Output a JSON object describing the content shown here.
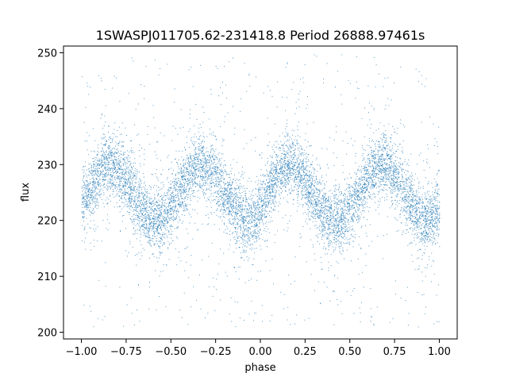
{
  "chart_data": {
    "type": "scatter",
    "title": "1SWASPJ011705.62-231418.8 Period 26888.97461s",
    "xlabel": "phase",
    "ylabel": "flux",
    "xlim": [
      -1.1,
      1.1
    ],
    "ylim": [
      198.8,
      251.2
    ],
    "xticks": [
      -1.0,
      -0.75,
      -0.5,
      -0.25,
      0.0,
      0.25,
      0.5,
      0.75,
      1.0
    ],
    "xtick_labels": [
      "−1.00",
      "−0.75",
      "−0.50",
      "−0.25",
      "0.00",
      "0.25",
      "0.50",
      "0.75",
      "1.00"
    ],
    "yticks": [
      200,
      210,
      220,
      230,
      240,
      250
    ],
    "ytick_labels": [
      "200",
      "210",
      "220",
      "230",
      "240",
      "250"
    ],
    "grid": false,
    "legend": "none",
    "point_color": "#1f77b4",
    "series": [
      {
        "x_range": [
          -1.0,
          1.0
        ],
        "baseline_flux": 225,
        "scatter_band_halfwidth": 3,
        "outlier_range": [
          201,
          250
        ],
        "trend_points": [
          {
            "x": -1.0,
            "y": 224
          },
          {
            "x": -0.85,
            "y": 230
          },
          {
            "x": -0.58,
            "y": 220
          },
          {
            "x": -0.33,
            "y": 230
          },
          {
            "x": -0.07,
            "y": 220
          },
          {
            "x": 0.15,
            "y": 230
          },
          {
            "x": 0.42,
            "y": 220
          },
          {
            "x": 0.68,
            "y": 230
          },
          {
            "x": 0.93,
            "y": 220
          },
          {
            "x": 1.0,
            "y": 222
          }
        ]
      }
    ]
  }
}
